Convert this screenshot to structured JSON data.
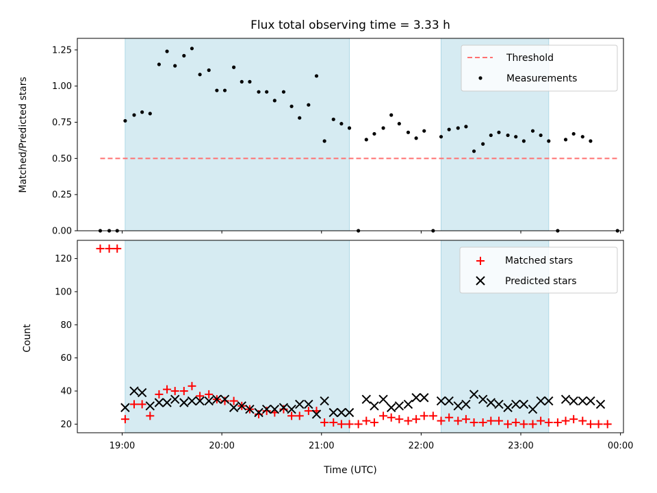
{
  "chart_data": [
    {
      "type": "scatter",
      "title": "Flux total observing time = 3.33 h",
      "xlabel": "",
      "ylabel": "Matched/Predicted stars",
      "ylim": [
        0,
        1.33
      ],
      "yticks": [
        "0.00",
        "0.25",
        "0.50",
        "0.75",
        "1.00",
        "1.25"
      ],
      "x_unit": "hours",
      "xlim": [
        18.55,
        24.03
      ],
      "legend_position": "top-right",
      "shaded_intervals": [
        [
          19.03,
          21.28
        ],
        [
          22.2,
          23.28
        ]
      ],
      "series": [
        {
          "name": "Threshold",
          "style": "dashed-line",
          "color": "#ff7070",
          "x": [
            18.78,
            23.97
          ],
          "y": [
            0.5,
            0.5
          ]
        },
        {
          "name": "Measurements",
          "style": "dots",
          "color": "#000000",
          "x": [
            18.78,
            18.87,
            18.95,
            19.03,
            19.12,
            19.2,
            19.28,
            19.37,
            19.45,
            19.53,
            19.62,
            19.7,
            19.78,
            19.87,
            19.95,
            20.03,
            20.12,
            20.2,
            20.28,
            20.37,
            20.45,
            20.53,
            20.62,
            20.7,
            20.78,
            20.87,
            20.95,
            21.03,
            21.12,
            21.2,
            21.28,
            21.37,
            21.45,
            21.53,
            21.62,
            21.7,
            21.78,
            21.87,
            21.95,
            22.03,
            22.12,
            22.2,
            22.28,
            22.37,
            22.45,
            22.53,
            22.62,
            22.7,
            22.78,
            22.87,
            22.95,
            23.03,
            23.12,
            23.2,
            23.28,
            23.37,
            23.45,
            23.53,
            23.62,
            23.7,
            23.97
          ],
          "y": [
            0,
            0,
            0,
            0.76,
            0.8,
            0.82,
            0.81,
            1.15,
            1.24,
            1.14,
            1.21,
            1.26,
            1.08,
            1.11,
            0.97,
            0.97,
            1.13,
            1.03,
            1.03,
            0.96,
            0.96,
            0.9,
            0.96,
            0.86,
            0.78,
            0.87,
            1.07,
            0.62,
            0.77,
            0.74,
            0.71,
            0,
            0.63,
            0.67,
            0.71,
            0.8,
            0.74,
            0.68,
            0.64,
            0.69,
            0,
            0.65,
            0.7,
            0.71,
            0.72,
            0.55,
            0.6,
            0.66,
            0.68,
            0.66,
            0.65,
            0.62,
            0.69,
            0.66,
            0.62,
            0,
            0.63,
            0.67,
            0.65,
            0.62,
            0
          ]
        }
      ]
    },
    {
      "type": "scatter",
      "title": "",
      "xlabel": "Time (UTC)",
      "ylabel": "Count",
      "ylim": [
        14.8,
        131
      ],
      "yticks": [
        "20",
        "40",
        "60",
        "80",
        "100",
        "120"
      ],
      "x_unit": "hours",
      "xlim": [
        18.55,
        24.03
      ],
      "xticks": [
        "19:00",
        "20:00",
        "21:00",
        "22:00",
        "23:00",
        "00:00"
      ],
      "legend_position": "top-right",
      "shaded_intervals": [
        [
          19.03,
          21.28
        ],
        [
          22.2,
          23.28
        ]
      ],
      "series": [
        {
          "name": "Matched stars",
          "marker": "plus",
          "color": "#ff0000",
          "x": [
            18.78,
            18.87,
            18.95,
            19.03,
            19.12,
            19.2,
            19.28,
            19.37,
            19.45,
            19.53,
            19.62,
            19.7,
            19.78,
            19.87,
            19.95,
            20.03,
            20.12,
            20.2,
            20.28,
            20.37,
            20.45,
            20.53,
            20.62,
            20.7,
            20.78,
            20.87,
            20.95,
            21.03,
            21.12,
            21.2,
            21.28,
            21.37,
            21.45,
            21.53,
            21.62,
            21.7,
            21.78,
            21.87,
            21.95,
            22.03,
            22.12,
            22.2,
            22.28,
            22.37,
            22.45,
            22.53,
            22.62,
            22.7,
            22.78,
            22.87,
            22.95,
            23.03,
            23.12,
            23.2,
            23.28,
            23.37,
            23.45,
            23.53,
            23.62,
            23.7,
            23.78,
            23.87
          ],
          "y": [
            126,
            126,
            126,
            23,
            32,
            32,
            25,
            38,
            41,
            40,
            40,
            43,
            37,
            38,
            35,
            34,
            34,
            31,
            29,
            26,
            28,
            27,
            29,
            25,
            25,
            28,
            28,
            21,
            21,
            20,
            20,
            20,
            22,
            21,
            25,
            24,
            23,
            22,
            23,
            25,
            25,
            22,
            24,
            22,
            23,
            21,
            21,
            22,
            22,
            20,
            21,
            20,
            20,
            22,
            21,
            21,
            22,
            23,
            22,
            20,
            20,
            20
          ]
        },
        {
          "name": "Predicted stars",
          "marker": "cross",
          "color": "#000000",
          "x": [
            19.03,
            19.12,
            19.2,
            19.28,
            19.37,
            19.45,
            19.53,
            19.62,
            19.7,
            19.78,
            19.87,
            19.95,
            20.03,
            20.12,
            20.2,
            20.28,
            20.37,
            20.45,
            20.53,
            20.62,
            20.7,
            20.78,
            20.87,
            20.95,
            21.03,
            21.12,
            21.2,
            21.28,
            21.45,
            21.53,
            21.62,
            21.7,
            21.78,
            21.87,
            21.95,
            22.03,
            22.2,
            22.28,
            22.37,
            22.45,
            22.53,
            22.62,
            22.7,
            22.78,
            22.87,
            22.95,
            23.03,
            23.12,
            23.2,
            23.28,
            23.45,
            23.53,
            23.62,
            23.7,
            23.8
          ],
          "y": [
            30,
            40,
            39,
            31,
            33,
            33,
            35,
            33,
            34,
            34,
            34,
            35,
            35,
            30,
            31,
            29,
            27,
            29,
            29,
            30,
            29,
            32,
            32,
            26,
            34,
            27,
            27,
            27,
            35,
            31,
            35,
            30,
            31,
            32,
            36,
            36,
            34,
            34,
            31,
            32,
            38,
            35,
            33,
            32,
            30,
            32,
            32,
            29,
            34,
            34,
            35,
            34,
            34,
            34,
            32
          ]
        }
      ]
    }
  ]
}
